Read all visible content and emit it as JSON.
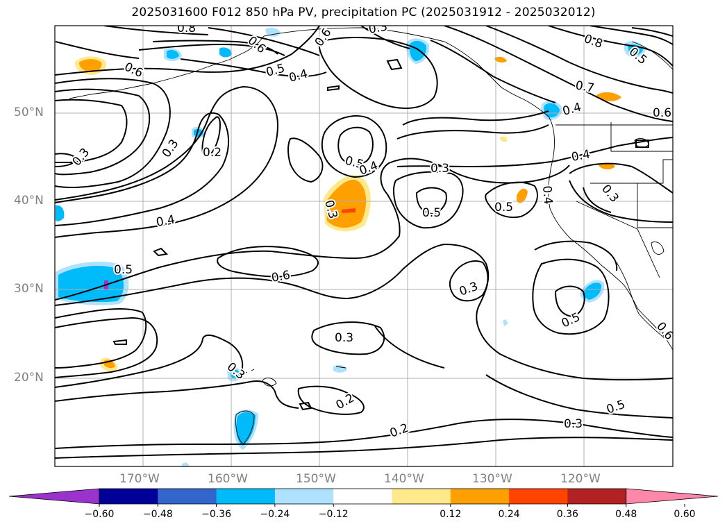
{
  "title": "2025031600 F012 850 hPa PV, precipitation PC (2025031912 - 2025032012)",
  "map": {
    "lon_range": [
      -180,
      -110
    ],
    "lat_range": [
      10,
      60
    ],
    "gridlines": true,
    "lat_labels": [
      "50°N",
      "40°N",
      "30°N",
      "20°N"
    ],
    "lon_labels": [
      "170°W",
      "160°W",
      "150°W",
      "140°W",
      "130°W",
      "120°W"
    ]
  },
  "contour_labels": [
    {
      "text": "0.8"
    },
    {
      "text": "0.6"
    },
    {
      "text": "0.6"
    },
    {
      "text": "0.3"
    },
    {
      "text": "0.8"
    },
    {
      "text": "0.5"
    },
    {
      "text": "0.6"
    },
    {
      "text": "0.5"
    },
    {
      "text": "0.4"
    },
    {
      "text": "0.7"
    },
    {
      "text": "0.4"
    },
    {
      "text": "0.6"
    },
    {
      "text": "0.3"
    },
    {
      "text": "0.3"
    },
    {
      "text": "0.2"
    },
    {
      "text": "0.5"
    },
    {
      "text": "0.4"
    },
    {
      "text": "0.3"
    },
    {
      "text": "0.4"
    },
    {
      "text": "0.3"
    },
    {
      "text": "0.4"
    },
    {
      "text": "0.3"
    },
    {
      "text": "0.5"
    },
    {
      "text": "0.5"
    },
    {
      "text": "0.5"
    },
    {
      "text": "0.6"
    },
    {
      "text": "0.3"
    },
    {
      "text": "0.4"
    },
    {
      "text": "0.3"
    },
    {
      "text": "0.5"
    },
    {
      "text": "0.3"
    },
    {
      "text": "0.2"
    },
    {
      "text": "0.2"
    },
    {
      "text": "0.3"
    },
    {
      "text": "0.5"
    },
    {
      "text": "0.6"
    }
  ],
  "colorbar": {
    "colors": [
      "#9933cc",
      "#000099",
      "#3366cc",
      "#00bbf9",
      "#aee2ff",
      "#ffffff",
      "#ffe98a",
      "#ff9f00",
      "#ff4400",
      "#b22222",
      "#ff88aa"
    ],
    "tick_labels": [
      "−0.60",
      "−0.48",
      "−0.36",
      "−0.24",
      "−0.12",
      "0.12",
      "0.24",
      "0.36",
      "0.48",
      "0.60"
    ]
  }
}
